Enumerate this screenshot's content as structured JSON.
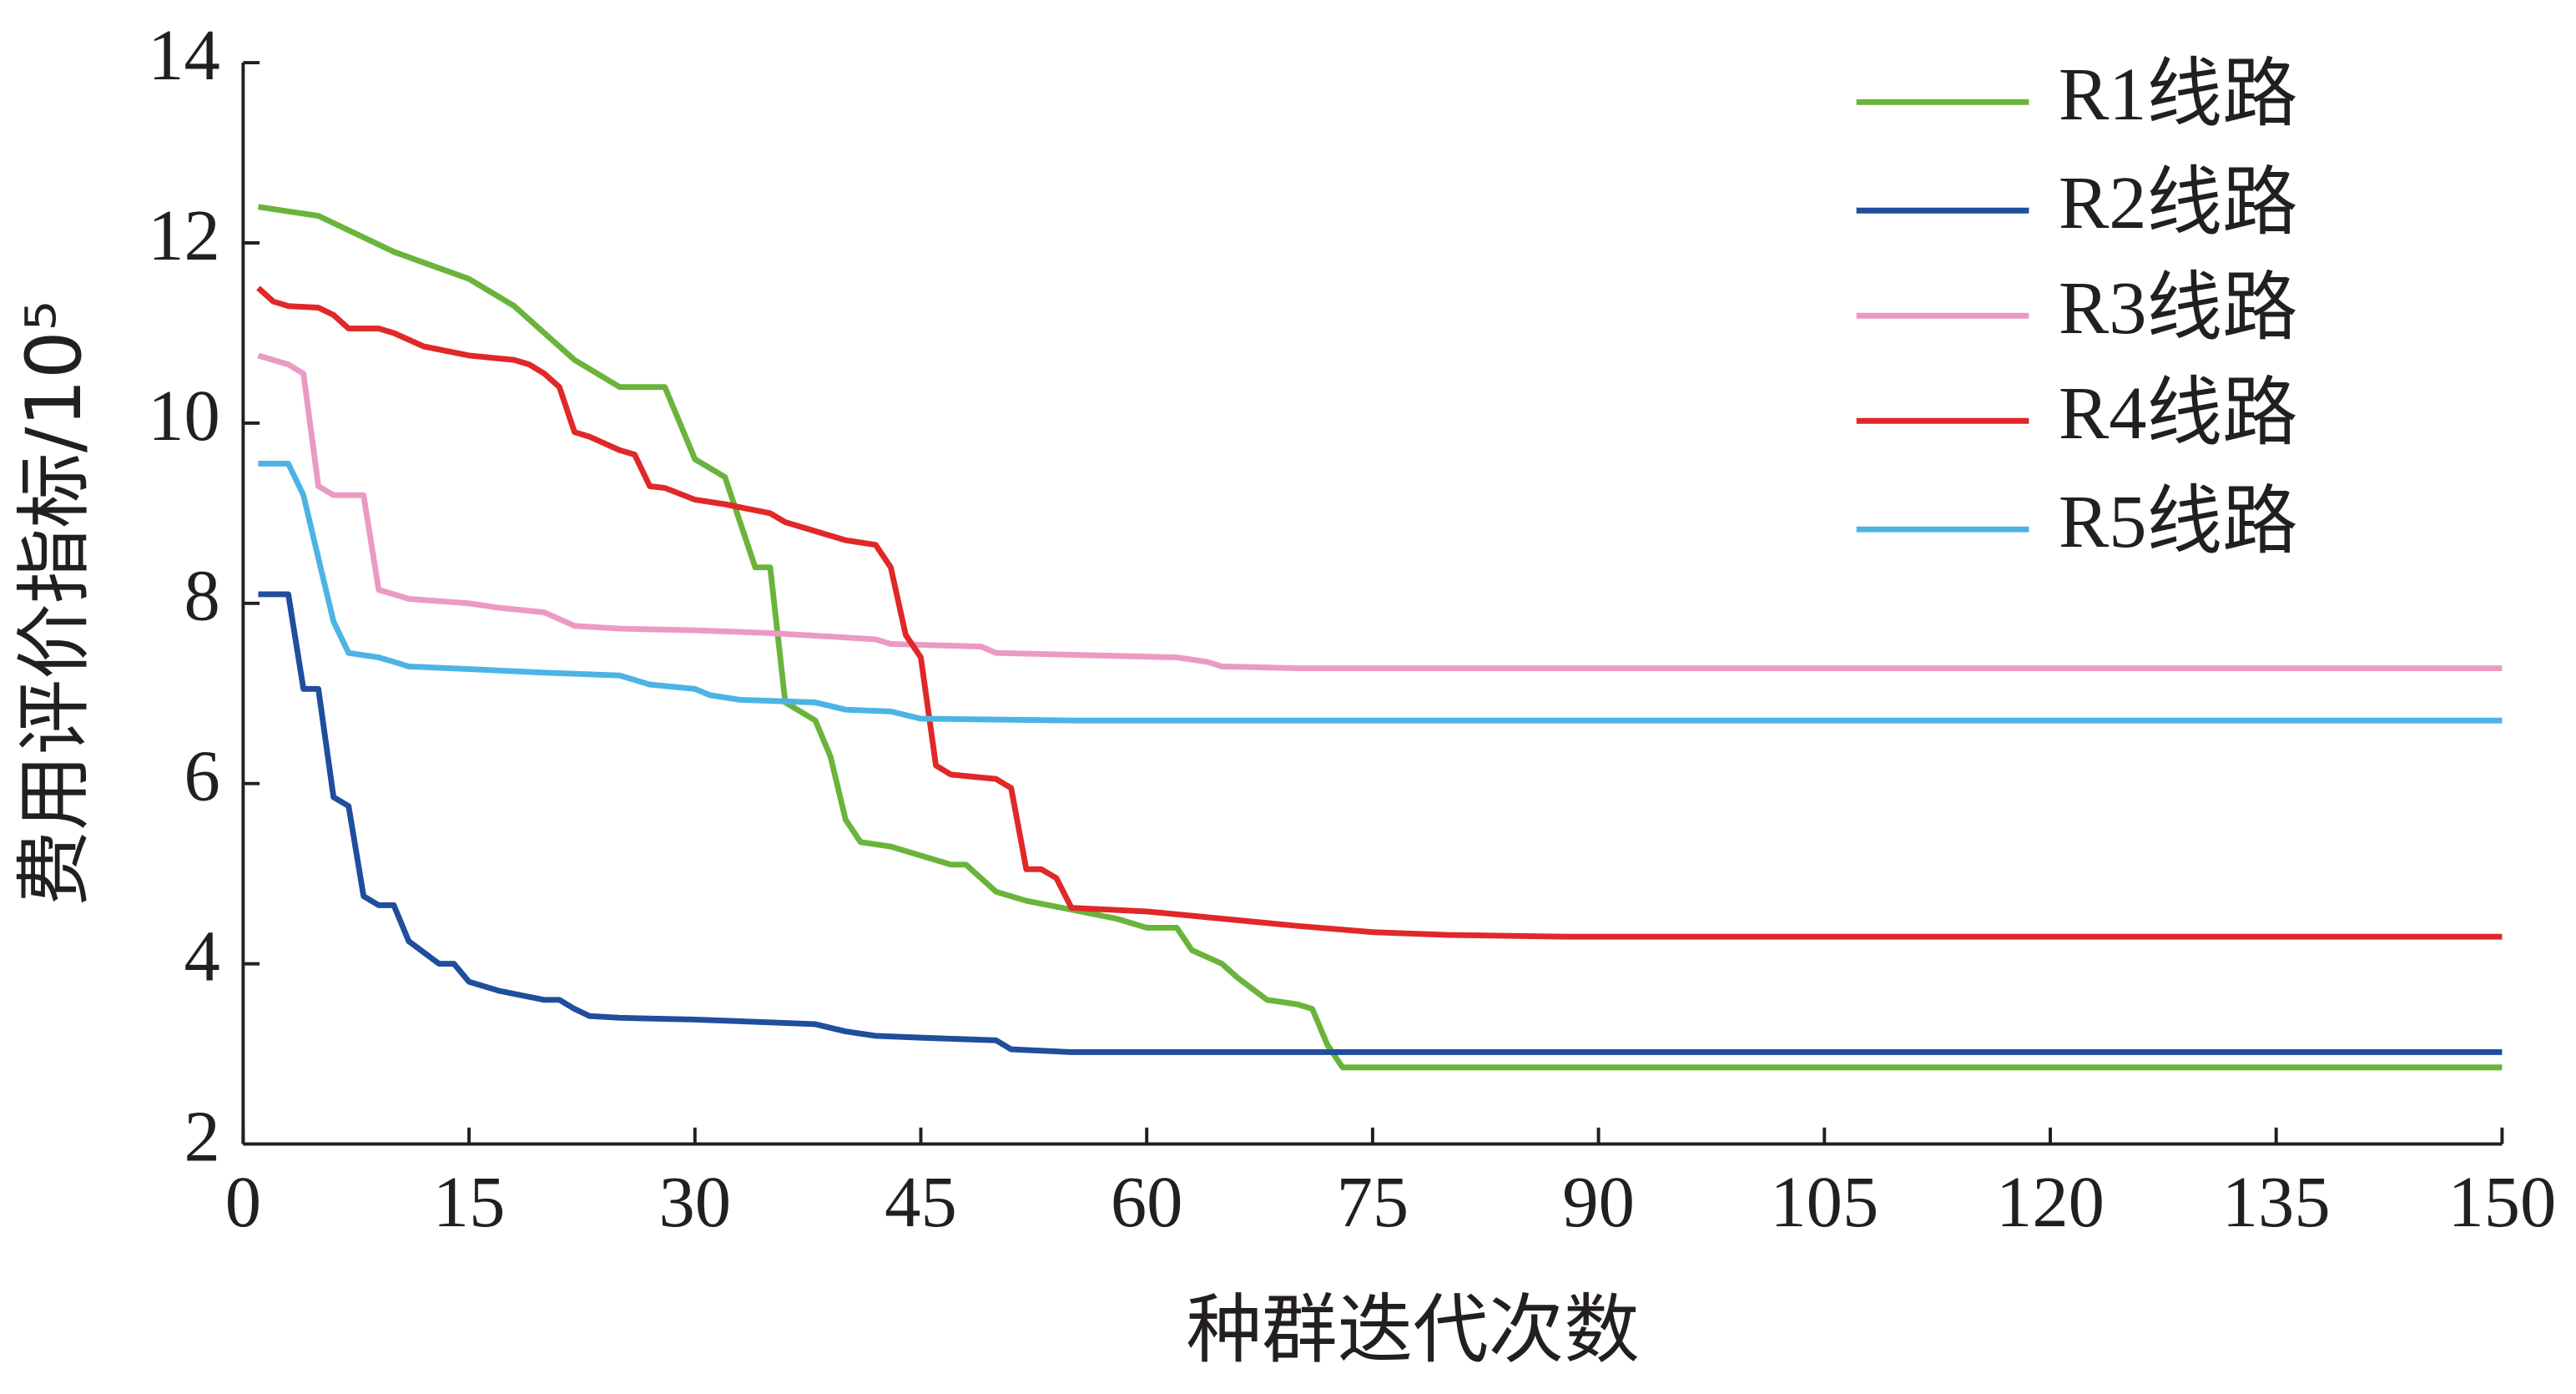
{
  "chart_data": {
    "type": "line",
    "xlabel": "种群迭代次数",
    "ylabel": "费用评价指标/10⁵",
    "xlim": [
      0,
      150
    ],
    "xticks": [
      0,
      15,
      30,
      45,
      60,
      75,
      90,
      105,
      120,
      135,
      150
    ],
    "ylim": [
      2,
      14
    ],
    "yticks": [
      2,
      4,
      6,
      8,
      10,
      12,
      14
    ],
    "legend": "upper right",
    "grid": false,
    "series": [
      {
        "name": "R1线路",
        "color": "#6ab43c",
        "x": [
          1,
          3,
          5,
          10,
          15,
          18,
          20,
          22,
          25,
          28,
          30,
          32,
          34,
          35,
          36,
          38,
          39,
          40,
          41,
          43,
          45,
          47,
          48,
          50,
          52,
          55,
          58,
          60,
          62,
          63,
          65,
          66,
          68,
          70,
          71,
          72,
          73,
          75,
          150
        ],
        "values": [
          12.4,
          12.35,
          12.3,
          11.9,
          11.6,
          11.3,
          11.0,
          10.7,
          10.4,
          10.4,
          9.6,
          9.4,
          8.4,
          8.4,
          6.9,
          6.7,
          6.3,
          5.6,
          5.35,
          5.3,
          5.2,
          5.1,
          5.1,
          4.8,
          4.7,
          4.6,
          4.5,
          4.4,
          4.4,
          4.15,
          4.0,
          3.85,
          3.6,
          3.55,
          3.5,
          3.1,
          2.85,
          2.85,
          2.85
        ]
      },
      {
        "name": "R2线路",
        "color": "#1f4e9c",
        "x": [
          1,
          3,
          4,
          5,
          6,
          7,
          8,
          9,
          10,
          11,
          13,
          14,
          15,
          17,
          20,
          21,
          22,
          23,
          25,
          30,
          35,
          38,
          40,
          42,
          45,
          50,
          51,
          55,
          150
        ],
        "values": [
          8.1,
          8.1,
          7.05,
          7.05,
          5.85,
          5.75,
          4.75,
          4.65,
          4.65,
          4.25,
          4.0,
          4.0,
          3.8,
          3.7,
          3.6,
          3.6,
          3.5,
          3.42,
          3.4,
          3.38,
          3.35,
          3.33,
          3.25,
          3.2,
          3.18,
          3.15,
          3.05,
          3.02,
          3.02
        ]
      },
      {
        "name": "R3线路",
        "color": "#eb9ac3",
        "x": [
          1,
          3,
          4,
          5,
          6,
          8,
          9,
          10,
          11,
          15,
          17,
          20,
          22,
          25,
          30,
          35,
          40,
          42,
          43,
          49,
          50,
          55,
          62,
          64,
          65,
          70,
          150
        ],
        "values": [
          10.75,
          10.65,
          10.55,
          9.3,
          9.2,
          9.2,
          8.15,
          8.1,
          8.05,
          8.0,
          7.95,
          7.9,
          7.75,
          7.72,
          7.7,
          7.67,
          7.62,
          7.6,
          7.55,
          7.52,
          7.45,
          7.43,
          7.4,
          7.35,
          7.3,
          7.28,
          7.28
        ]
      },
      {
        "name": "R4线路",
        "color": "#e02828",
        "x": [
          1,
          2,
          3,
          5,
          6,
          7,
          9,
          10,
          12,
          15,
          18,
          19,
          20,
          21,
          22,
          23,
          25,
          26,
          27,
          28,
          30,
          32,
          35,
          36,
          38,
          40,
          42,
          43,
          44,
          45,
          46,
          47,
          50,
          51,
          52,
          53,
          54,
          55,
          60,
          62,
          65,
          70,
          75,
          80,
          88,
          150
        ],
        "values": [
          11.5,
          11.35,
          11.3,
          11.28,
          11.2,
          11.05,
          11.05,
          11.0,
          10.85,
          10.75,
          10.7,
          10.65,
          10.55,
          10.4,
          9.9,
          9.85,
          9.7,
          9.65,
          9.3,
          9.28,
          9.15,
          9.1,
          9.0,
          8.9,
          8.8,
          8.7,
          8.65,
          8.4,
          7.65,
          7.4,
          6.2,
          6.1,
          6.05,
          5.95,
          5.05,
          5.05,
          4.95,
          4.62,
          4.58,
          4.55,
          4.5,
          4.42,
          4.35,
          4.32,
          4.3,
          4.3
        ]
      },
      {
        "name": "R5线路",
        "color": "#4cb4e4",
        "x": [
          1,
          3,
          4,
          5,
          6,
          7,
          9,
          10,
          11,
          15,
          20,
          25,
          27,
          30,
          31,
          33,
          38,
          40,
          43,
          45,
          55,
          60,
          150
        ],
        "values": [
          9.55,
          9.55,
          9.2,
          8.5,
          7.8,
          7.45,
          7.4,
          7.35,
          7.3,
          7.27,
          7.23,
          7.2,
          7.1,
          7.05,
          6.98,
          6.93,
          6.9,
          6.82,
          6.8,
          6.72,
          6.7,
          6.7,
          6.7
        ]
      }
    ]
  }
}
